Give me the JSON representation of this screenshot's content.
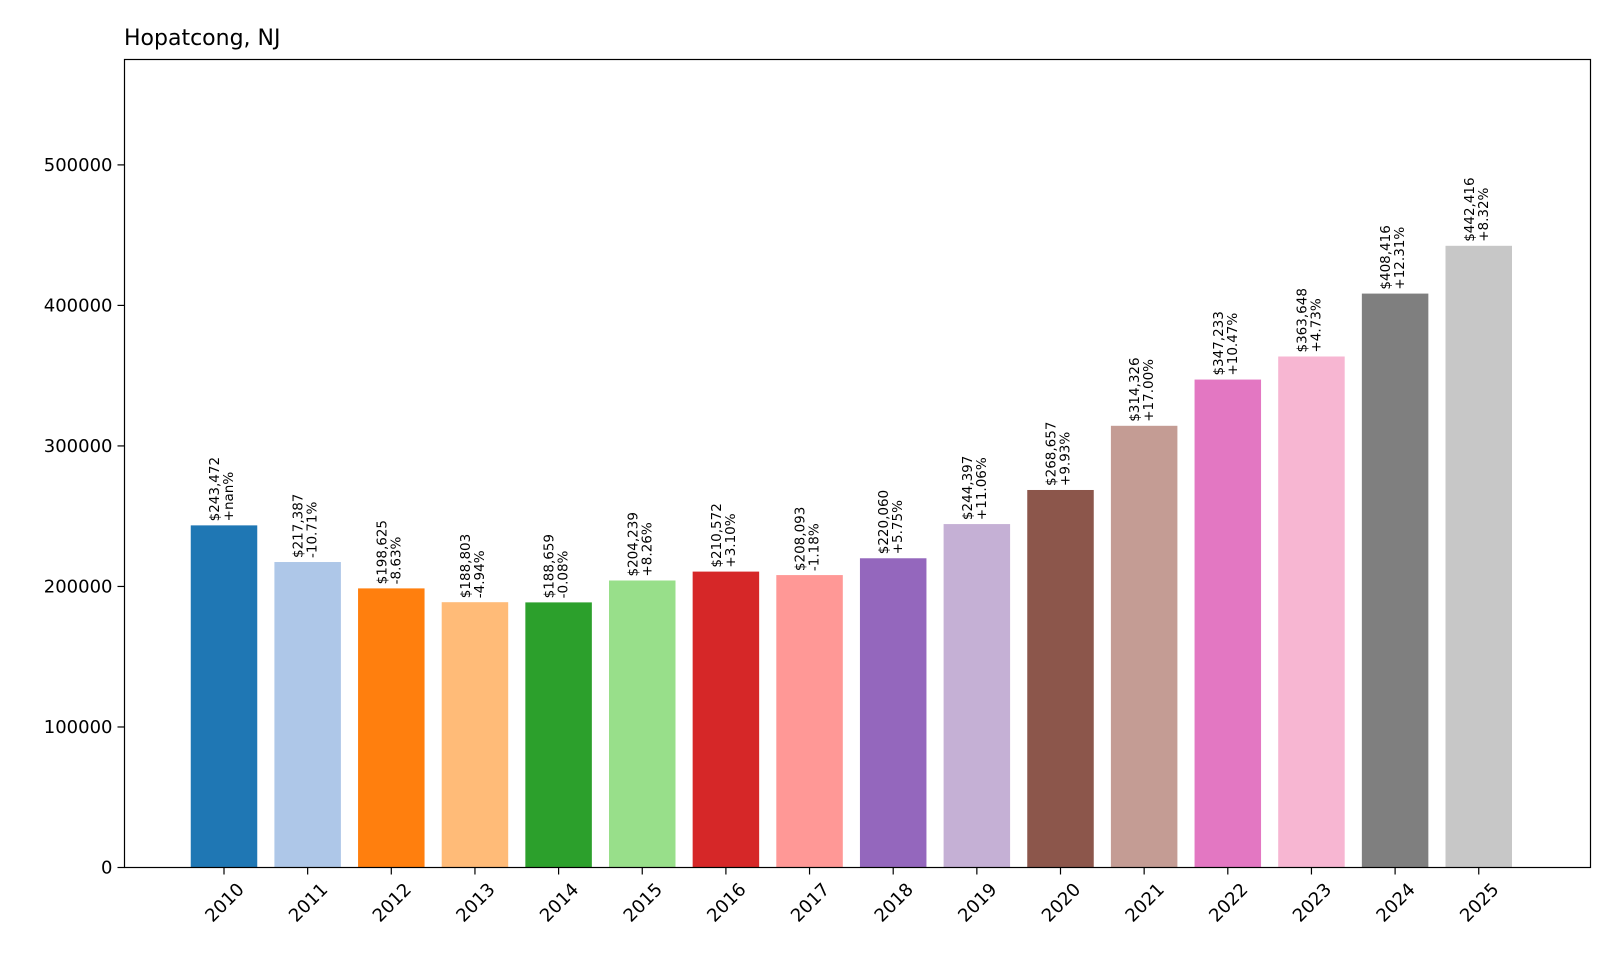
{
  "chart_data": {
    "type": "bar",
    "title": "Hopatcong, NJ",
    "xlabel": "",
    "ylabel": "",
    "ylim": [
      0,
      575000
    ],
    "yticks": [
      0,
      100000,
      200000,
      300000,
      400000,
      500000
    ],
    "ytick_labels": [
      "0",
      "100000",
      "200000",
      "300000",
      "400000",
      "500000"
    ],
    "grid": false,
    "legend": "none",
    "categories": [
      "2010",
      "2011",
      "2012",
      "2013",
      "2014",
      "2015",
      "2016",
      "2017",
      "2018",
      "2019",
      "2020",
      "2021",
      "2022",
      "2023",
      "2024",
      "2025"
    ],
    "values": [
      243472,
      217387,
      198625,
      188803,
      188659,
      204239,
      210572,
      208093,
      220060,
      244397,
      268657,
      314326,
      347233,
      363648,
      408416,
      442416
    ],
    "value_labels": [
      "$243,472",
      "$217,387",
      "$198,625",
      "$188,803",
      "$188,659",
      "$204,239",
      "$210,572",
      "$208,093",
      "$220,060",
      "$244,397",
      "$268,657",
      "$314,326",
      "$347,233",
      "$363,648",
      "$408,416",
      "$442,416"
    ],
    "change_labels": [
      "+nan%",
      "-10.71%",
      "-8.63%",
      "-4.94%",
      "-0.08%",
      "+8.26%",
      "+3.10%",
      "-1.18%",
      "+5.75%",
      "+11.06%",
      "+9.93%",
      "+17.00%",
      "+10.47%",
      "+4.73%",
      "+12.31%",
      "+8.32%"
    ],
    "colors": [
      "#1f77b4",
      "#aec7e8",
      "#ff7f0e",
      "#ffbb78",
      "#2ca02c",
      "#98df8a",
      "#d62728",
      "#ff9896",
      "#9467bd",
      "#c5b0d5",
      "#8c564b",
      "#c49c94",
      "#e377c2",
      "#f7b6d2",
      "#7f7f7f",
      "#c7c7c7"
    ]
  }
}
